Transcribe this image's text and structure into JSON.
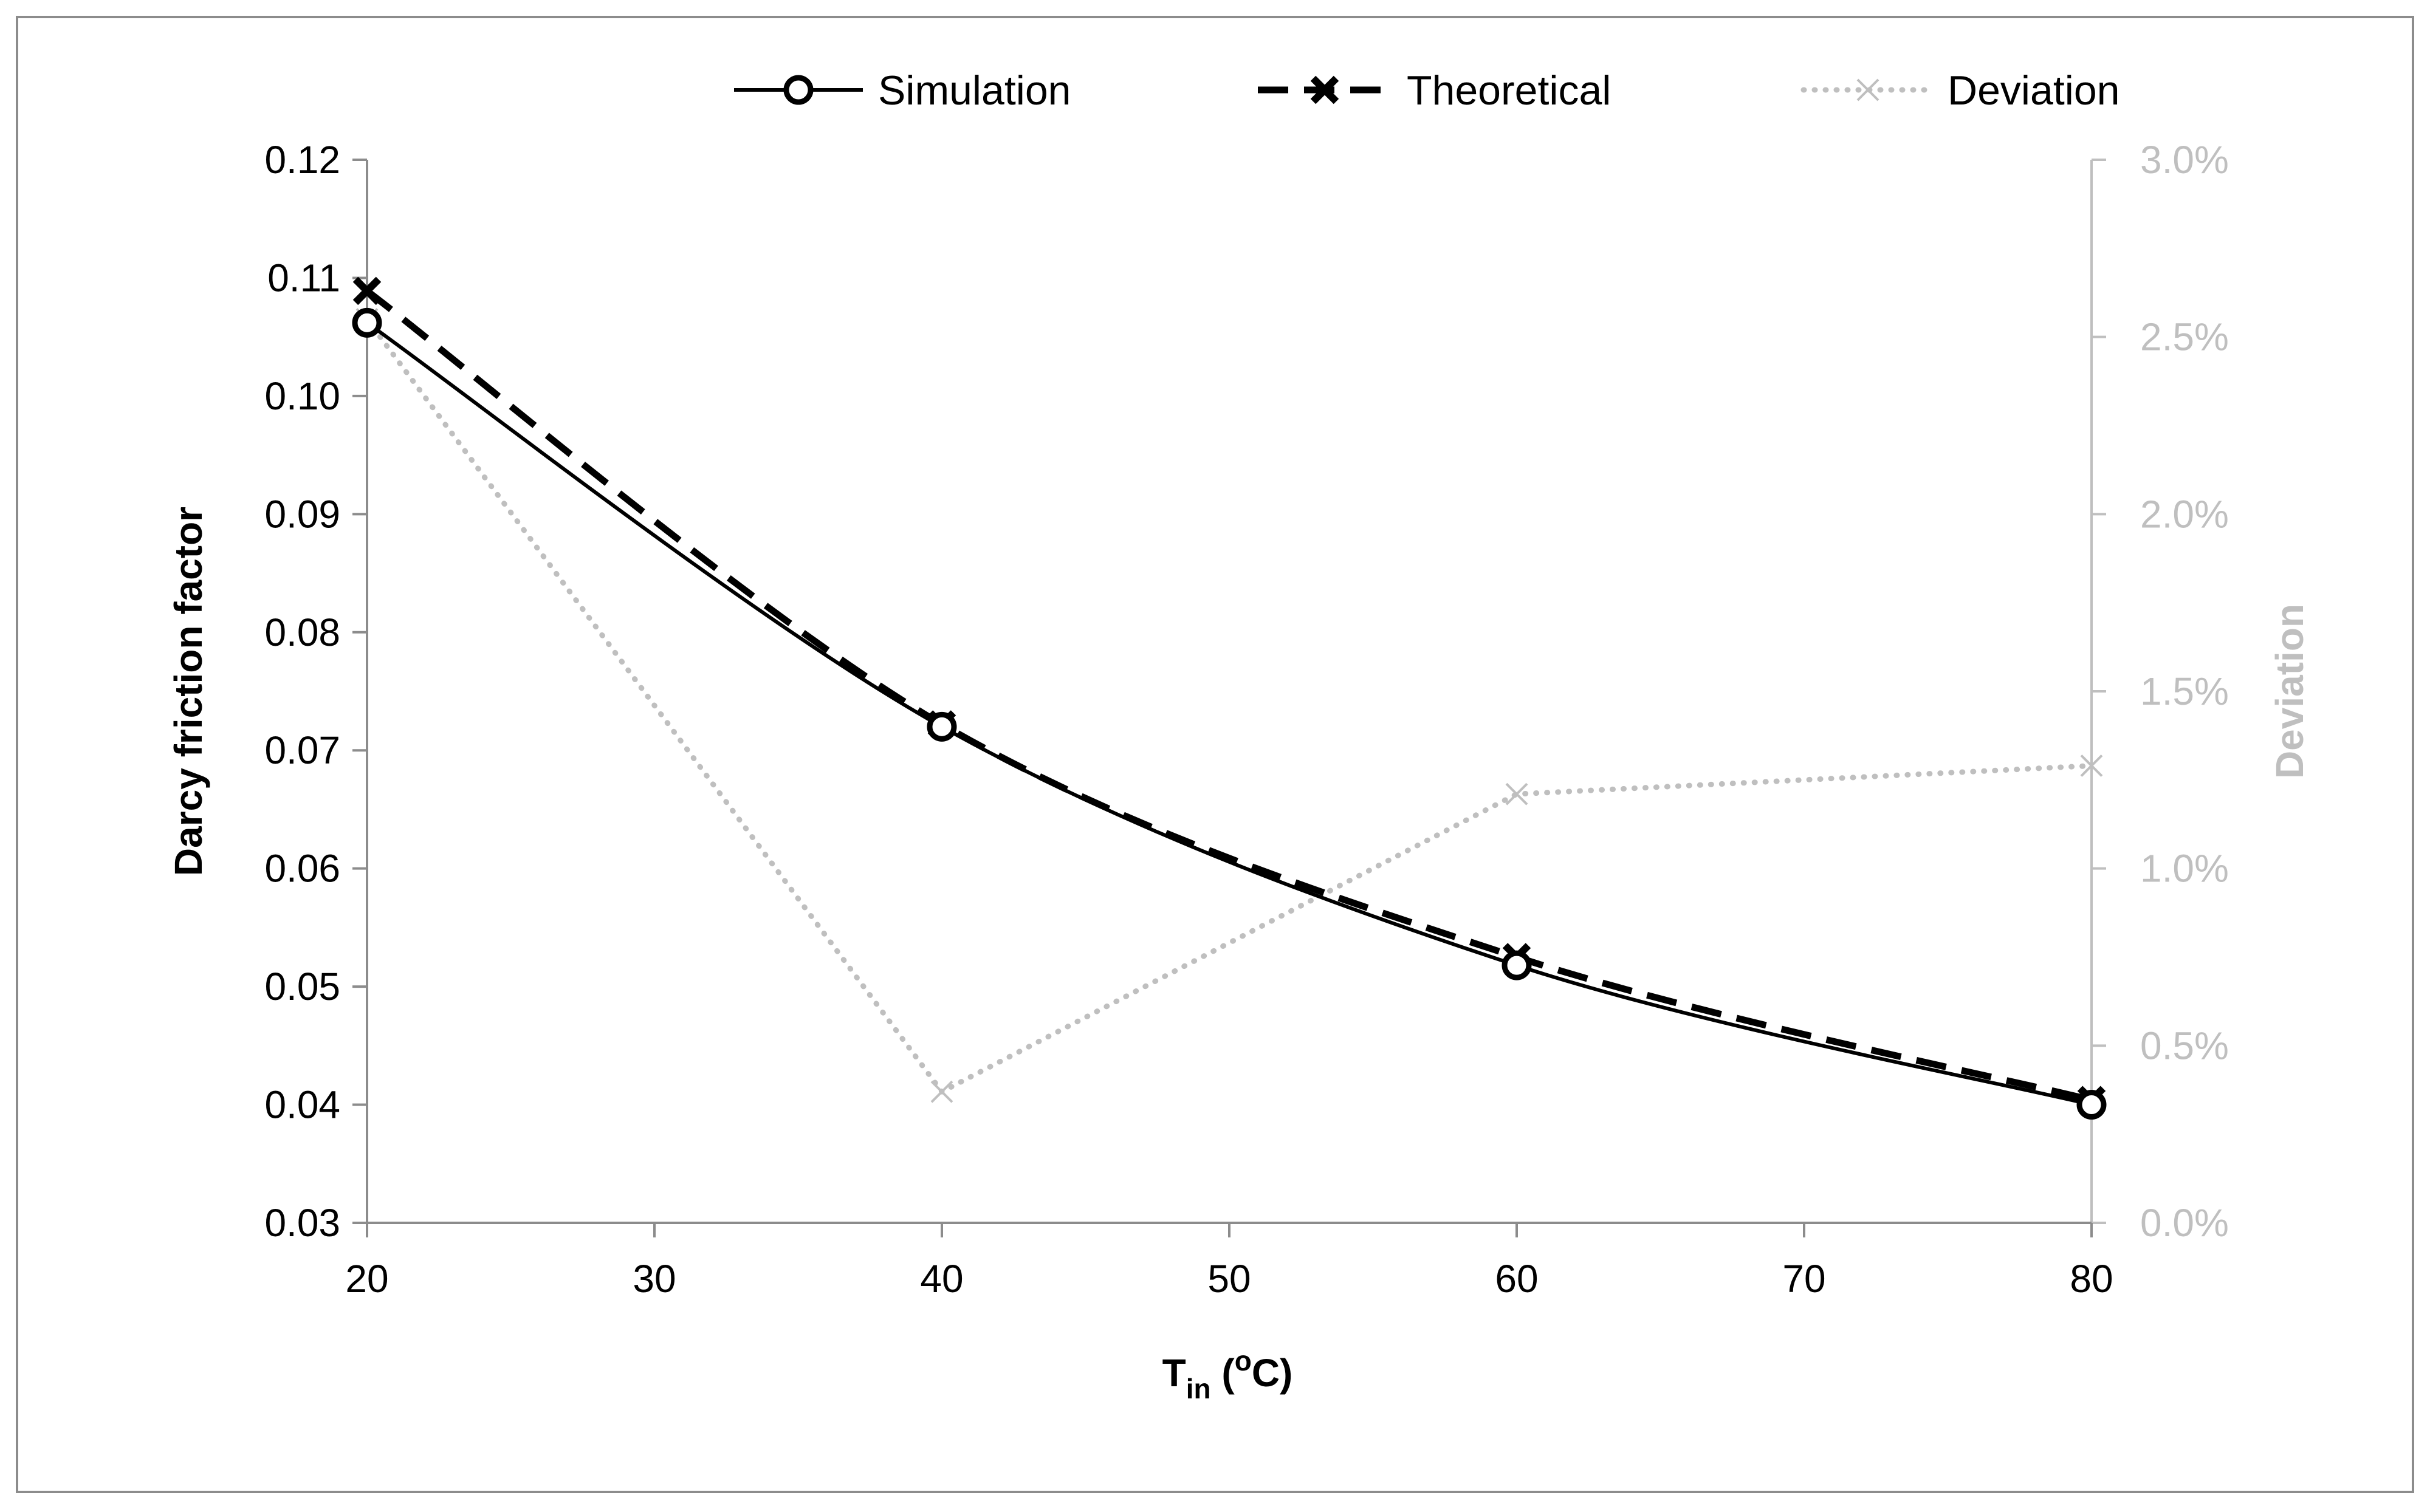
{
  "chart_data": {
    "type": "line",
    "title": "",
    "x": [
      20,
      40,
      60,
      80
    ],
    "x_ticks": [
      "20",
      "30",
      "40",
      "50",
      "60",
      "70",
      "80"
    ],
    "xlim": [
      20,
      80
    ],
    "xlabel": {
      "main": "T",
      "sub": "in",
      "unit_open": " (",
      "sup": "o",
      "unit_close": "C)"
    },
    "ylabel": "Darcy friction factor",
    "ylim": [
      0.03,
      0.12
    ],
    "y_ticks": [
      "0.03",
      "0.04",
      "0.05",
      "0.06",
      "0.07",
      "0.08",
      "0.09",
      "0.10",
      "0.11",
      "0.12"
    ],
    "y2label": "Deviation",
    "y2lim": [
      0.0,
      3.0
    ],
    "y2_ticks": [
      "0.0%",
      "0.5%",
      "1.0%",
      "1.5%",
      "2.0%",
      "2.5%",
      "3.0%"
    ],
    "series": [
      {
        "name": "Simulation",
        "axis": "left",
        "values": [
          0.1062,
          0.072,
          0.0518,
          0.04
        ],
        "color": "#000000",
        "line": "solid",
        "marker": "circle"
      },
      {
        "name": "Theoretical",
        "axis": "left",
        "values": [
          0.1089,
          0.0722,
          0.0525,
          0.0404
        ],
        "color": "#000000",
        "line": "dashed",
        "marker": "x-bold"
      },
      {
        "name": "Deviation",
        "axis": "right",
        "values": [
          2.55,
          0.37,
          1.21,
          1.29
        ],
        "unit": "%",
        "color": "#bfbfbf",
        "line": "dotted",
        "marker": "x"
      }
    ],
    "legend_position": "top",
    "grid": false
  }
}
